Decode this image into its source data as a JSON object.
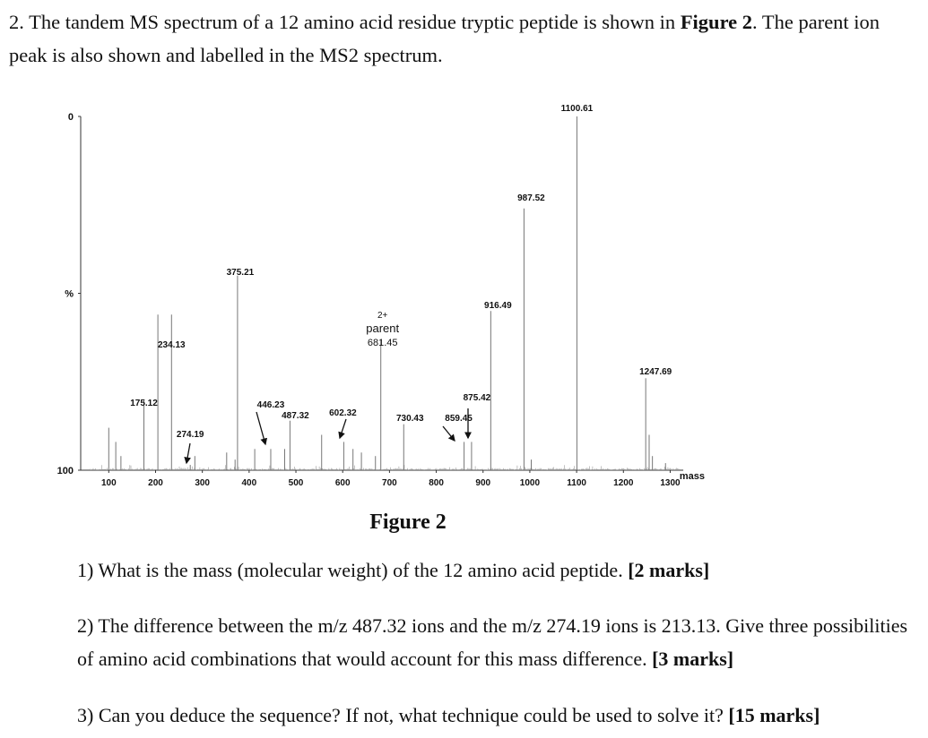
{
  "question": {
    "text_before_bold": "2. The tandem MS spectrum of a 12 amino acid residue tryptic peptide is shown in ",
    "bold": "Figure 2",
    "text_after_bold": ". The parent ion peak is also shown and labelled in the MS2 spectrum."
  },
  "figure_caption": "Figure 2",
  "subquestions": [
    {
      "text": "1) What is the mass (molecular weight) of the 12 amino acid peptide. ",
      "marks": "[2 marks]"
    },
    {
      "text": "2) The difference between the m/z 487.32 ions and the m/z 274.19 ions is 213.13. Give three possibilities of amino acid combinations that would account for this mass difference. ",
      "marks": "[3 marks]"
    },
    {
      "text": "3) Can you deduce the sequence? If not, what technique could be used to solve it? ",
      "marks": "[15 marks]"
    }
  ],
  "chart_data": {
    "type": "bar",
    "title": "",
    "xlabel": "mass",
    "ylabel": "%",
    "xlim": [
      40,
      1330
    ],
    "ylim": [
      0,
      100
    ],
    "x_ticks": [
      "100",
      "200",
      "300",
      "400",
      "500",
      "600",
      "700",
      "800",
      "900",
      "1000",
      "1100",
      "1200",
      "1300"
    ],
    "y_ticks": [
      "0",
      "%",
      "100"
    ],
    "labeled_peaks": [
      {
        "mz": 175.12,
        "label": "175.12",
        "intensity": 20
      },
      {
        "mz": 234.13,
        "label": "234.13",
        "intensity": 44
      },
      {
        "mz": 274.19,
        "label": "274.19",
        "intensity": 1.5
      },
      {
        "mz": 375.21,
        "label": "375.21",
        "intensity": 55
      },
      {
        "mz": 446.23,
        "label": "446.23",
        "intensity": 6
      },
      {
        "mz": 487.32,
        "label": "487.32",
        "intensity": 14
      },
      {
        "mz": 602.32,
        "label": "602.32",
        "intensity": 8
      },
      {
        "mz": 681.45,
        "label": "681.45",
        "intensity": 37,
        "charge": "2+",
        "name": "parent"
      },
      {
        "mz": 730.43,
        "label": "730.43",
        "intensity": 13
      },
      {
        "mz": 859.45,
        "label": "859.45",
        "intensity": 8
      },
      {
        "mz": 875.42,
        "label": "875.42",
        "intensity": 8
      },
      {
        "mz": 916.49,
        "label": "916.49",
        "intensity": 45
      },
      {
        "mz": 987.52,
        "label": "987.52",
        "intensity": 74
      },
      {
        "mz": 1100.61,
        "label": "1100.61",
        "intensity": 100
      },
      {
        "mz": 1247.69,
        "label": "1247.69",
        "intensity": 26
      }
    ],
    "minor_peaks": [
      {
        "mz": 100,
        "intensity": 12
      },
      {
        "mz": 115,
        "intensity": 8
      },
      {
        "mz": 126,
        "intensity": 4
      },
      {
        "mz": 205,
        "intensity": 44
      },
      {
        "mz": 284,
        "intensity": 4
      },
      {
        "mz": 352,
        "intensity": 5
      },
      {
        "mz": 370,
        "intensity": 3
      },
      {
        "mz": 412,
        "intensity": 6
      },
      {
        "mz": 476,
        "intensity": 6
      },
      {
        "mz": 555,
        "intensity": 10
      },
      {
        "mz": 622,
        "intensity": 6
      },
      {
        "mz": 640,
        "intensity": 5
      },
      {
        "mz": 670,
        "intensity": 4
      },
      {
        "mz": 1003,
        "intensity": 3
      },
      {
        "mz": 1255,
        "intensity": 10
      },
      {
        "mz": 1262,
        "intensity": 4
      },
      {
        "mz": 1290,
        "intensity": 2
      }
    ]
  }
}
